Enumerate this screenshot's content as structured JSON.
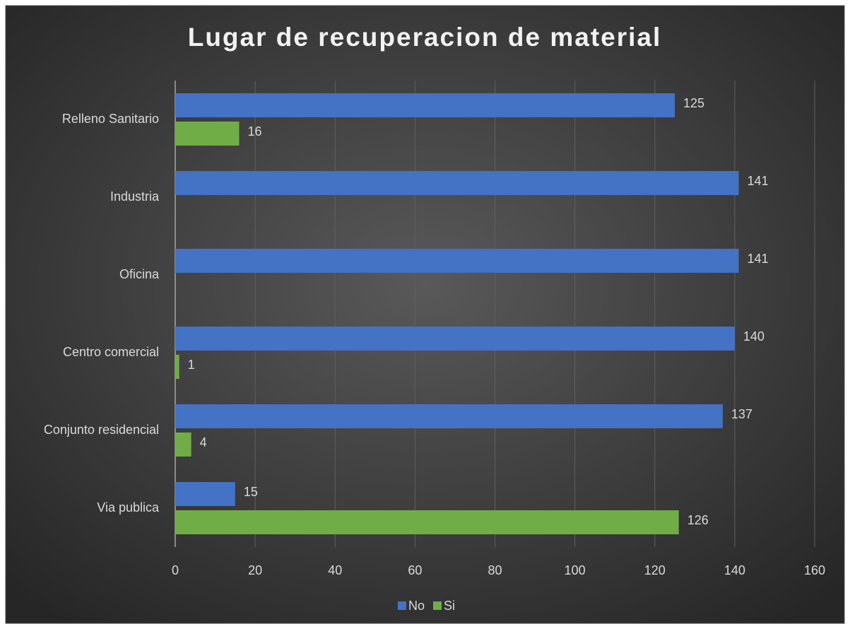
{
  "chart_data": {
    "type": "hbar",
    "title": "Lugar de recuperacion de material",
    "categories": [
      "Relleno Sanitario",
      "Industria",
      "Oficina",
      "Centro comercial",
      "Conjunto residencial",
      "Via publica"
    ],
    "series": [
      {
        "name": "No",
        "color": "#4472c4",
        "values": [
          125,
          141,
          141,
          140,
          137,
          15
        ]
      },
      {
        "name": "Si",
        "color": "#70ad47",
        "values": [
          16,
          null,
          null,
          1,
          4,
          126
        ]
      }
    ],
    "xlim": [
      0,
      160
    ],
    "xticks": [
      0,
      20,
      40,
      60,
      80,
      100,
      120,
      140,
      160
    ],
    "grid": true,
    "legend": "bottom"
  }
}
